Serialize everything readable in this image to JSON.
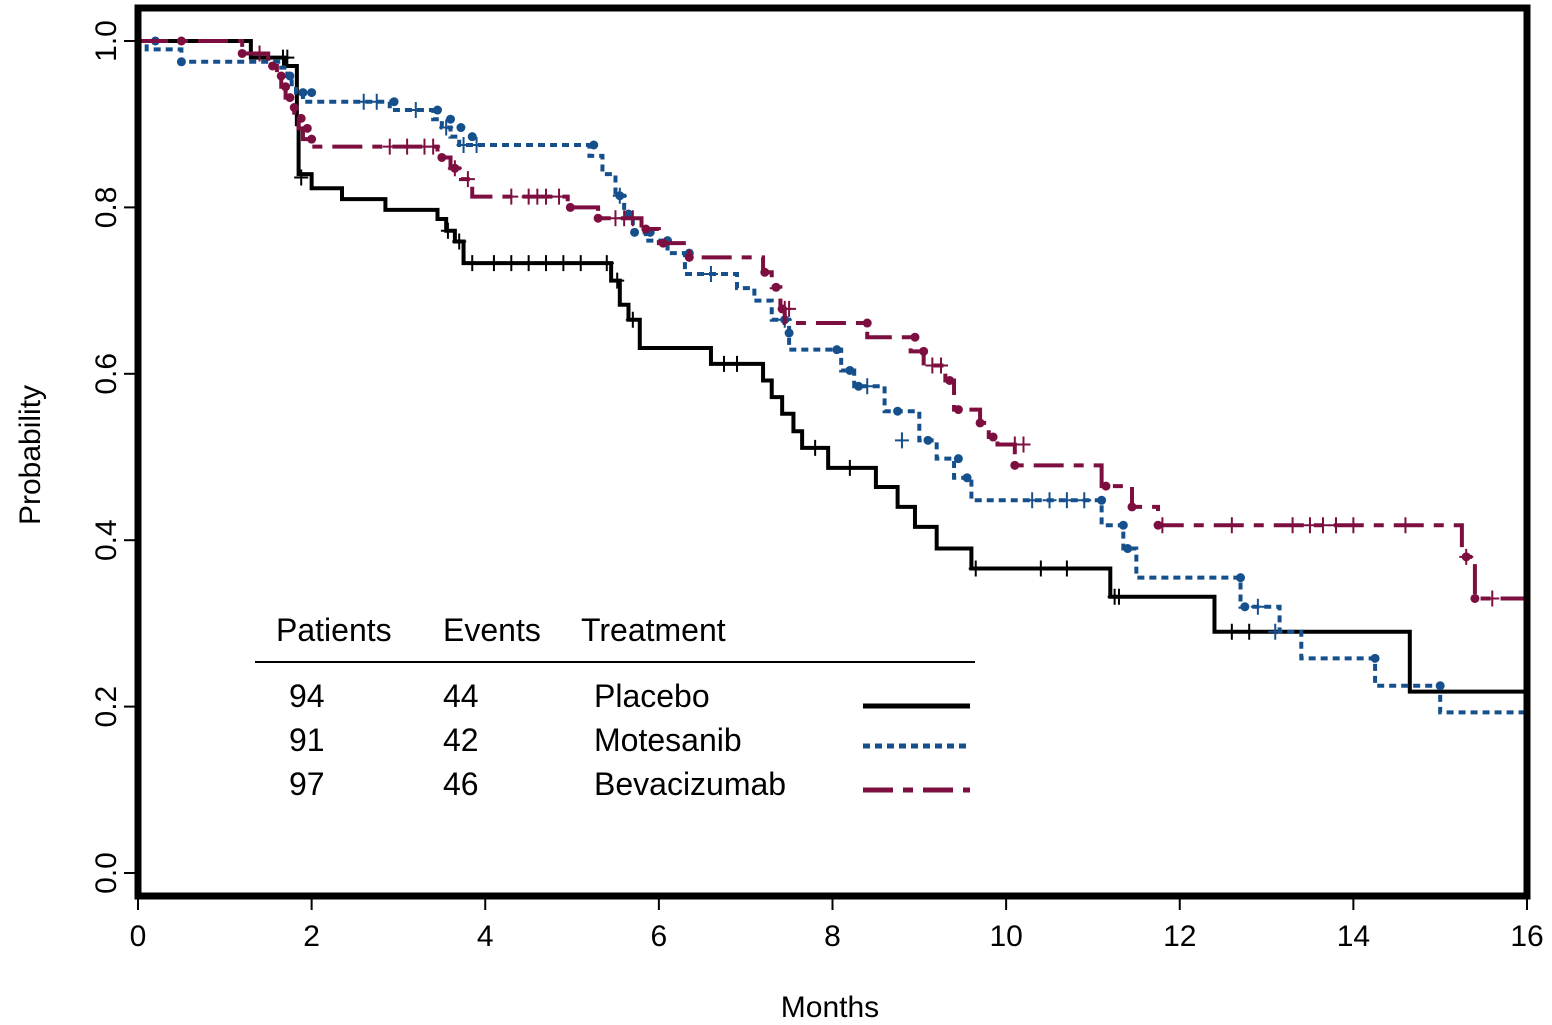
{
  "chart_data": {
    "type": "line",
    "step": true,
    "xlabel": "Months",
    "ylabel": "Probability",
    "xlim": [
      0,
      16
    ],
    "ylim": [
      0,
      1
    ],
    "x_ticks": [
      0,
      2,
      4,
      6,
      8,
      10,
      12,
      14,
      16
    ],
    "x_tick_labels": [
      "0",
      "2",
      "4",
      "6",
      "8",
      "10",
      "12",
      "14",
      "16"
    ],
    "y_ticks": [
      0,
      0.2,
      0.4,
      0.6,
      0.8,
      1.0
    ],
    "y_tick_labels": [
      "0.0",
      "0.2",
      "0.4",
      "0.6",
      "0.8",
      "1.0"
    ],
    "grid": false,
    "legend": {
      "placement": "bottom-left",
      "headers": [
        "Patients",
        "Events",
        "Treatment"
      ],
      "rows": [
        {
          "patients": "94",
          "events": "44",
          "treatment": "Placebo"
        },
        {
          "patients": "91",
          "events": "42",
          "treatment": "Motesanib"
        },
        {
          "patients": "97",
          "events": "46",
          "treatment": "Bevacizumab"
        }
      ]
    },
    "series": [
      {
        "name": "Placebo",
        "color": "#000000",
        "style": "solid",
        "x": [
          0,
          1.3,
          1.7,
          1.83,
          1.85,
          2.0,
          2.35,
          2.85,
          3.45,
          3.55,
          3.65,
          3.75,
          5.45,
          5.55,
          5.65,
          5.78,
          6.6,
          7.2,
          7.3,
          7.42,
          7.55,
          7.65,
          7.95,
          8.5,
          8.75,
          8.95,
          9.2,
          9.6,
          11.2,
          12.4,
          14.65,
          16
        ],
        "y": [
          1.0,
          0.98,
          0.97,
          0.9,
          0.84,
          0.823,
          0.81,
          0.797,
          0.786,
          0.772,
          0.759,
          0.733,
          0.712,
          0.683,
          0.665,
          0.631,
          0.612,
          0.592,
          0.572,
          0.552,
          0.531,
          0.511,
          0.487,
          0.464,
          0.44,
          0.416,
          0.39,
          0.366,
          0.332,
          0.29,
          0.218,
          0.218
        ],
        "censored_x": [
          1.67,
          1.72,
          1.88,
          3.57,
          3.7,
          3.85,
          4.1,
          4.3,
          4.5,
          4.7,
          4.9,
          5.1,
          5.4,
          5.52,
          5.7,
          6.75,
          6.9,
          7.8,
          8.2,
          9.65,
          10.4,
          10.7,
          11.25,
          11.3,
          12.6,
          12.8
        ],
        "censored_y": [
          0.98,
          0.98,
          0.836,
          0.772,
          0.759,
          0.733,
          0.733,
          0.733,
          0.733,
          0.733,
          0.733,
          0.733,
          0.733,
          0.712,
          0.665,
          0.612,
          0.612,
          0.511,
          0.487,
          0.366,
          0.366,
          0.366,
          0.332,
          0.332,
          0.29,
          0.29
        ]
      },
      {
        "name": "Motesanib",
        "color": "#15508d",
        "style": "dotted",
        "x": [
          0,
          0.1,
          0.5,
          1.65,
          1.72,
          1.77,
          1.82,
          1.9,
          2.0,
          2.9,
          3.4,
          3.5,
          3.6,
          3.7,
          3.8,
          5.2,
          5.35,
          5.5,
          5.6,
          5.7,
          5.85,
          6.1,
          6.3,
          6.9,
          7.1,
          7.3,
          7.5,
          8.1,
          8.25,
          8.6,
          9.0,
          9.2,
          9.4,
          9.6,
          11.1,
          11.35,
          11.5,
          12.7,
          13.15,
          13.4,
          14.25,
          15.0,
          16
        ],
        "y": [
          1.0,
          0.99,
          0.975,
          0.968,
          0.958,
          0.948,
          0.938,
          0.927,
          0.927,
          0.917,
          0.906,
          0.896,
          0.885,
          0.875,
          0.875,
          0.862,
          0.84,
          0.814,
          0.792,
          0.77,
          0.76,
          0.745,
          0.72,
          0.703,
          0.688,
          0.665,
          0.629,
          0.604,
          0.585,
          0.555,
          0.52,
          0.498,
          0.475,
          0.448,
          0.418,
          0.39,
          0.355,
          0.32,
          0.29,
          0.258,
          0.225,
          0.193,
          0.193
        ],
        "censored_x": [
          2.6,
          2.75,
          3.2,
          3.55,
          3.75,
          3.9,
          5.55,
          6.6,
          7.45,
          8.4,
          8.8,
          10.3,
          10.5,
          10.7,
          10.9,
          12.9,
          13.1
        ],
        "censored_y": [
          0.927,
          0.927,
          0.917,
          0.896,
          0.875,
          0.875,
          0.814,
          0.72,
          0.665,
          0.585,
          0.52,
          0.448,
          0.448,
          0.448,
          0.448,
          0.32,
          0.29
        ],
        "dots_x": [
          0.2,
          0.5,
          1.75,
          1.9,
          2.0,
          2.95,
          3.45,
          3.6,
          3.72,
          3.85,
          5.25,
          5.55,
          5.65,
          5.72,
          5.9,
          6.1,
          6.35,
          7.45,
          7.5,
          8.05,
          8.2,
          8.3,
          8.75,
          9.1,
          9.45,
          9.55,
          11.1,
          11.35,
          11.4,
          12.7,
          12.75,
          14.25,
          15.0
        ],
        "dots_y": [
          1.0,
          0.975,
          0.958,
          0.938,
          0.938,
          0.927,
          0.917,
          0.906,
          0.896,
          0.885,
          0.875,
          0.814,
          0.792,
          0.77,
          0.77,
          0.76,
          0.745,
          0.665,
          0.649,
          0.629,
          0.604,
          0.585,
          0.555,
          0.52,
          0.498,
          0.475,
          0.448,
          0.418,
          0.39,
          0.355,
          0.32,
          0.258,
          0.225
        ]
      },
      {
        "name": "Bevacizumab",
        "color": "#7d0f40",
        "style": "dashed",
        "x": [
          0,
          1.2,
          1.5,
          1.6,
          1.65,
          1.7,
          1.75,
          1.8,
          1.85,
          1.9,
          1.98,
          3.45,
          3.6,
          3.72,
          3.85,
          4.95,
          5.3,
          5.8,
          6.0,
          6.35,
          7.2,
          7.3,
          7.4,
          7.45,
          8.4,
          8.9,
          9.05,
          9.3,
          9.4,
          9.7,
          9.8,
          9.9,
          10.1,
          11.1,
          11.45,
          11.75,
          15.25,
          15.4,
          16
        ],
        "y": [
          1.0,
          0.985,
          0.97,
          0.958,
          0.945,
          0.932,
          0.92,
          0.907,
          0.895,
          0.882,
          0.873,
          0.86,
          0.847,
          0.834,
          0.813,
          0.8,
          0.787,
          0.774,
          0.757,
          0.74,
          0.722,
          0.704,
          0.678,
          0.661,
          0.644,
          0.627,
          0.61,
          0.592,
          0.557,
          0.541,
          0.524,
          0.515,
          0.49,
          0.465,
          0.44,
          0.418,
          0.38,
          0.33,
          0.33
        ],
        "censored_x": [
          1.4,
          2.9,
          3.1,
          3.3,
          3.4,
          3.65,
          3.8,
          4.3,
          4.5,
          4.6,
          4.7,
          4.85,
          5.5,
          5.6,
          5.7,
          7.45,
          7.5,
          9.15,
          9.25,
          10.1,
          10.2,
          11.8,
          12.6,
          13.3,
          13.5,
          13.65,
          13.8,
          14.0,
          14.6,
          15.3,
          15.6
        ],
        "censored_y": [
          0.985,
          0.873,
          0.873,
          0.873,
          0.873,
          0.847,
          0.834,
          0.813,
          0.813,
          0.813,
          0.813,
          0.813,
          0.787,
          0.787,
          0.787,
          0.678,
          0.678,
          0.61,
          0.61,
          0.515,
          0.515,
          0.418,
          0.418,
          0.418,
          0.418,
          0.418,
          0.418,
          0.418,
          0.418,
          0.38,
          0.33
        ],
        "dots_x": [
          0.5,
          1.2,
          1.55,
          1.65,
          1.7,
          1.75,
          1.8,
          1.88,
          1.95,
          2.0,
          3.5,
          3.65,
          4.98,
          5.3,
          5.85,
          6.05,
          6.35,
          7.22,
          7.35,
          7.42,
          8.4,
          8.95,
          9.05,
          9.35,
          9.45,
          9.7,
          9.85,
          10.1,
          11.15,
          11.45,
          11.75,
          15.3,
          15.4
        ],
        "dots_y": [
          1.0,
          0.985,
          0.97,
          0.958,
          0.945,
          0.932,
          0.92,
          0.907,
          0.895,
          0.882,
          0.86,
          0.847,
          0.8,
          0.787,
          0.774,
          0.757,
          0.74,
          0.722,
          0.704,
          0.678,
          0.661,
          0.644,
          0.627,
          0.592,
          0.557,
          0.541,
          0.524,
          0.49,
          0.465,
          0.44,
          0.418,
          0.38,
          0.33
        ]
      }
    ]
  }
}
